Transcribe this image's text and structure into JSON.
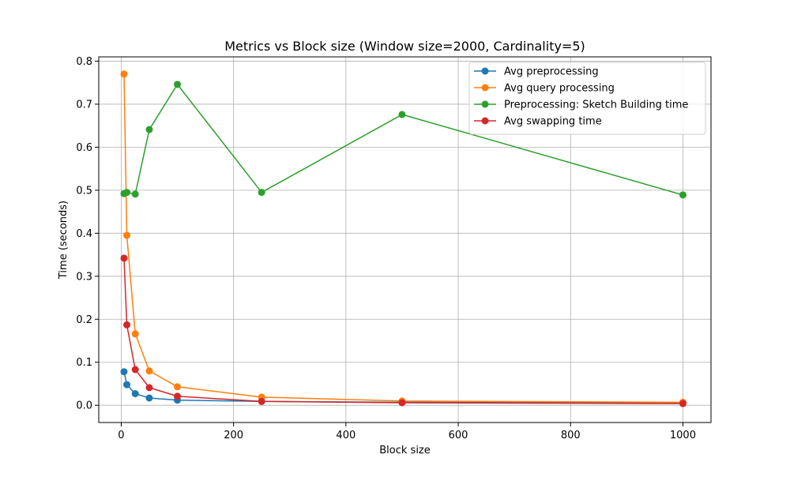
{
  "chart_data": {
    "type": "line",
    "title": "Metrics vs Block size (Window size=2000, Cardinality=5)",
    "xlabel": "Block size",
    "ylabel": "Time (seconds)",
    "xlim": [
      -40,
      1050
    ],
    "ylim": [
      -0.04,
      0.81
    ],
    "xticks": [
      0,
      200,
      400,
      600,
      800,
      1000
    ],
    "yticks": [
      0.0,
      0.1,
      0.2,
      0.3,
      0.4,
      0.5,
      0.6,
      0.7,
      0.8
    ],
    "xtick_labels": [
      "0",
      "200",
      "400",
      "600",
      "800",
      "1000"
    ],
    "ytick_labels": [
      "0.0",
      "0.1",
      "0.2",
      "0.3",
      "0.4",
      "0.5",
      "0.6",
      "0.7",
      "0.8"
    ],
    "grid": true,
    "legend_position": "top-right",
    "x": [
      5,
      10,
      25,
      50,
      100,
      250,
      500,
      1000
    ],
    "series": [
      {
        "name": "Avg preprocessing",
        "color": "#1f77b4",
        "values": [
          0.078,
          0.048,
          0.027,
          0.017,
          0.012,
          0.009,
          0.007,
          0.006
        ]
      },
      {
        "name": "Avg query processing",
        "color": "#ff7f0e",
        "values": [
          0.77,
          0.395,
          0.166,
          0.08,
          0.043,
          0.019,
          0.01,
          0.007
        ]
      },
      {
        "name": "Preprocessing: Sketch Building time",
        "color": "#2ca02c",
        "values": [
          0.492,
          0.495,
          0.491,
          0.641,
          0.746,
          0.495,
          0.676,
          0.489
        ]
      },
      {
        "name": "Avg swapping time",
        "color": "#d62728",
        "values": [
          0.342,
          0.187,
          0.083,
          0.041,
          0.021,
          0.009,
          0.006,
          0.004
        ]
      }
    ]
  }
}
